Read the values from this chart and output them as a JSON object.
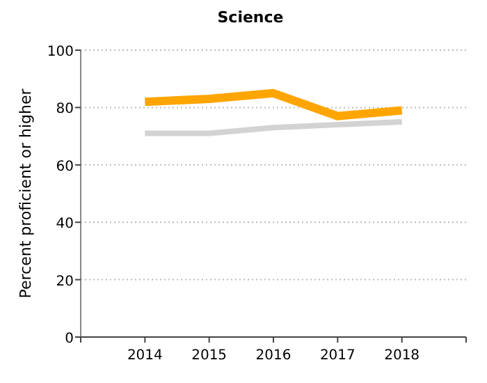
{
  "chart_data": {
    "type": "line",
    "title": "Science",
    "ylabel": "Percent proficient or higher",
    "x": [
      2014,
      2015,
      2016,
      2017,
      2018
    ],
    "xlim": [
      2013,
      2019
    ],
    "xticks": [
      {
        "value": 2013,
        "label": null
      },
      2014,
      2015,
      2016,
      2017,
      2018,
      {
        "value": 2019,
        "label": null
      }
    ],
    "ylim": [
      0,
      100
    ],
    "yticks": [
      0,
      20,
      40,
      60,
      80,
      100
    ],
    "grid": "y",
    "series": [
      {
        "color": "#ffa500",
        "values": [
          82,
          83,
          85,
          77,
          79
        ]
      },
      {
        "color": "#d3d3d3",
        "values": [
          71,
          71,
          73,
          74,
          75
        ]
      }
    ]
  }
}
